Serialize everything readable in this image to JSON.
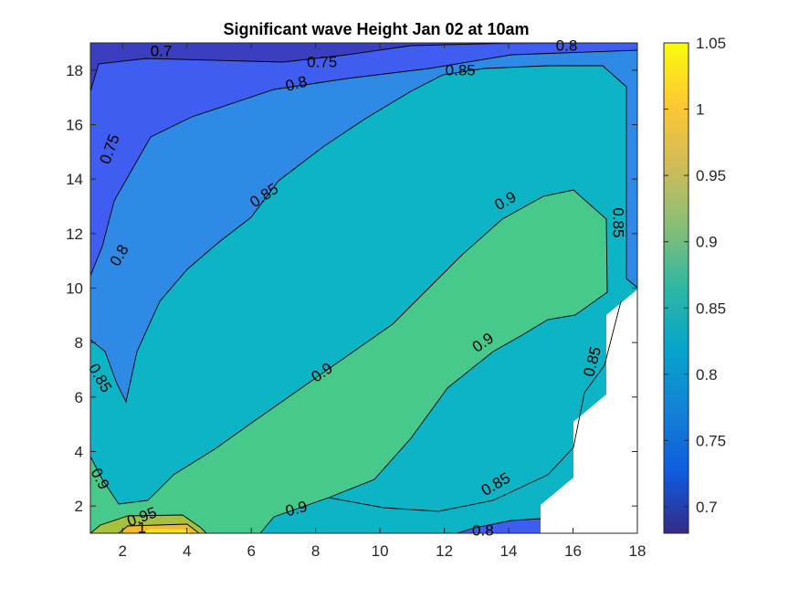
{
  "chart_data": {
    "type": "contour",
    "title": "Significant wave Height Jan 02 at 10am",
    "xlabel": "",
    "ylabel": "",
    "xlim": [
      1,
      18
    ],
    "ylim": [
      1,
      19
    ],
    "xticks": [
      "2",
      "4",
      "6",
      "8",
      "10",
      "12",
      "14",
      "16",
      "18"
    ],
    "yticks": [
      "2",
      "4",
      "6",
      "8",
      "10",
      "12",
      "14",
      "16",
      "18"
    ],
    "colorbar": {
      "range": [
        0.68,
        1.05
      ],
      "ticks": [
        "0.7",
        "0.75",
        "0.8",
        "0.85",
        "0.9",
        "0.95",
        "1",
        "1.05"
      ]
    },
    "contour_levels": [
      0.7,
      0.75,
      0.8,
      0.85,
      0.9,
      0.95,
      1.0
    ],
    "level_colors": [
      "#3a3fbf",
      "#3f5df0",
      "#2f8ae6",
      "#0db4c6",
      "#47c98b",
      "#a6c23c",
      "#f1b92e",
      "#f6e11d"
    ],
    "colormap": "parula",
    "missing_region": "bottom-right corner (no data)",
    "contour_labels": [
      {
        "text": "0.7",
        "x": 3.2,
        "y": 18.7,
        "angle": 0
      },
      {
        "text": "0.75",
        "x": 8.2,
        "y": 18.3,
        "angle": 0
      },
      {
        "text": "0.8",
        "x": 15.8,
        "y": 18.9,
        "angle": 0
      },
      {
        "text": "0.8",
        "x": 7.4,
        "y": 17.5,
        "angle": -14
      },
      {
        "text": "0.85",
        "x": 12.5,
        "y": 18.0,
        "angle": 0
      },
      {
        "text": "0.75",
        "x": 1.6,
        "y": 15.1,
        "angle": -70
      },
      {
        "text": "0.8",
        "x": 1.9,
        "y": 11.2,
        "angle": -60
      },
      {
        "text": "0.85",
        "x": 6.4,
        "y": 13.4,
        "angle": -34
      },
      {
        "text": "0.9",
        "x": 13.9,
        "y": 13.2,
        "angle": -30
      },
      {
        "text": "0.85",
        "x": 17.4,
        "y": 12.4,
        "angle": 90
      },
      {
        "text": "0.85",
        "x": 1.3,
        "y": 6.7,
        "angle": 60
      },
      {
        "text": "0.9",
        "x": 8.2,
        "y": 6.9,
        "angle": -35
      },
      {
        "text": "0.9",
        "x": 13.2,
        "y": 8.0,
        "angle": -35
      },
      {
        "text": "0.85",
        "x": 16.6,
        "y": 7.3,
        "angle": -75
      },
      {
        "text": "0.9",
        "x": 1.3,
        "y": 3.0,
        "angle": 62
      },
      {
        "text": "0.95",
        "x": 2.6,
        "y": 1.6,
        "angle": -20
      },
      {
        "text": "1",
        "x": 2.6,
        "y": 1.2,
        "angle": 0
      },
      {
        "text": "0.9",
        "x": 7.4,
        "y": 1.9,
        "angle": -15
      },
      {
        "text": "0.85",
        "x": 13.6,
        "y": 2.8,
        "angle": -30
      },
      {
        "text": "0.8",
        "x": 13.2,
        "y": 1.1,
        "angle": 0
      }
    ]
  }
}
